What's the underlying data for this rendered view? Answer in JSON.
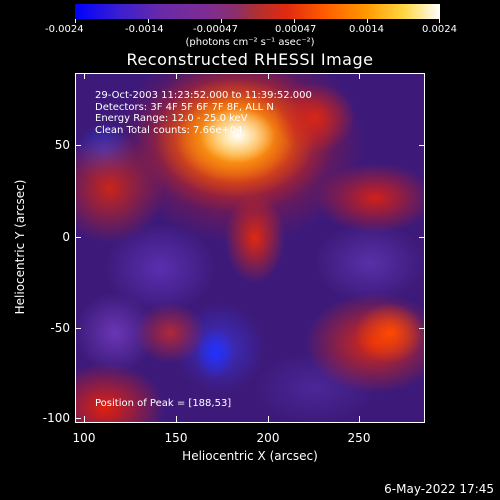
{
  "colorbar": {
    "tick_labels": [
      "-0.0024",
      "-0.0014",
      "-0.00047",
      "0.00047",
      "0.0014",
      "0.0024"
    ],
    "units_html": "(photons cm⁻² s⁻¹ asec⁻²)",
    "min": -0.0024,
    "max": 0.0024
  },
  "title": "Reconstructed RHESSI Image",
  "info_lines": [
    "29-Oct-2003 11:23:52.000 to 11:39:52.000",
    "Detectors: 3F 4F 5F 6F 7F 8F, ALL N",
    "Energy Range: 12.0 - 25.0 keV",
    "Clean     Total counts: 7.66e+04"
  ],
  "peak_text": "Position of Peak = [188,53]",
  "x_axis": {
    "title": "Heliocentric X (arcsec)",
    "tick_labels": [
      "100",
      "150",
      "200",
      "250"
    ]
  },
  "y_axis": {
    "title": "Heliocentric Y (arcsec)",
    "tick_labels": [
      "50",
      "0",
      "-50",
      "-100"
    ]
  },
  "date_stamp": "6-May-2022 17:45",
  "colors": {
    "background": "#000000",
    "panel_base": "#3d1a7a"
  }
}
